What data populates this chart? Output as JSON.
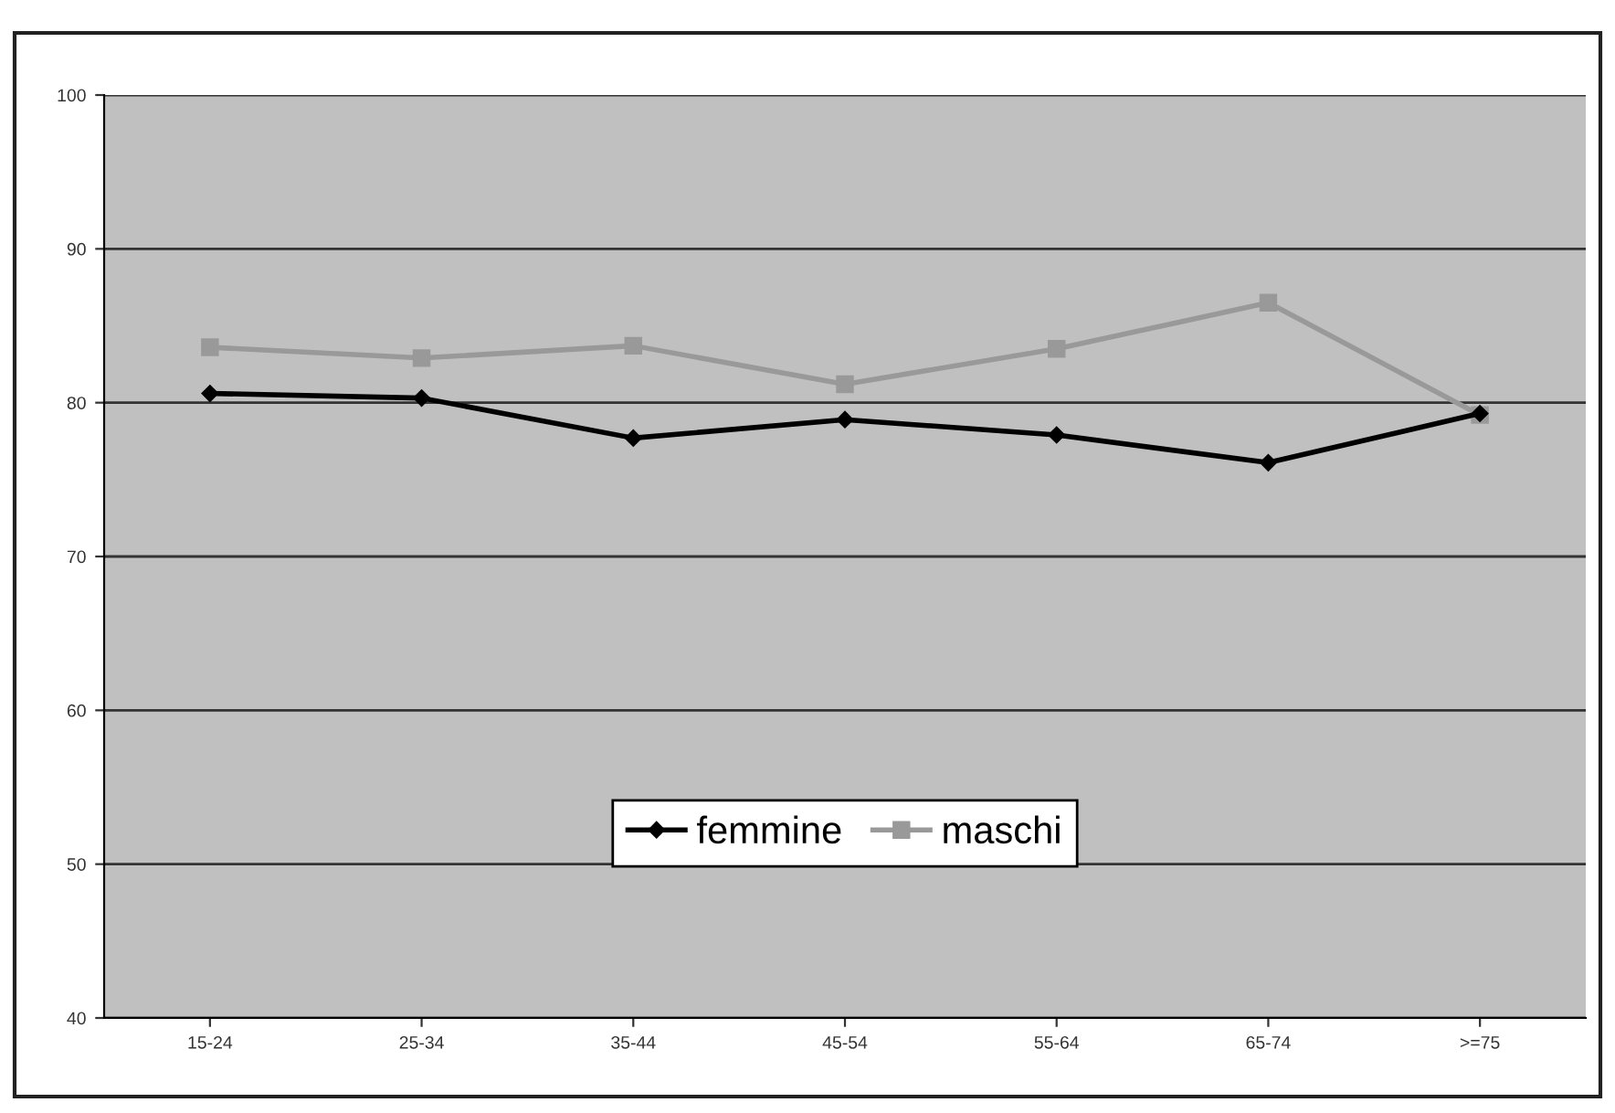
{
  "chart_data": {
    "type": "line",
    "categories": [
      "15-24",
      "25-34",
      "35-44",
      "45-54",
      "55-64",
      "65-74",
      ">=75"
    ],
    "series": [
      {
        "name": "femmine",
        "color": "#000000",
        "marker": "diamond",
        "values": [
          80.6,
          80.3,
          77.7,
          78.9,
          77.9,
          76.1,
          79.3
        ]
      },
      {
        "name": "maschi",
        "color": "#999999",
        "marker": "square",
        "values": [
          83.6,
          82.9,
          83.7,
          81.2,
          83.5,
          86.5,
          79.2
        ]
      }
    ],
    "ylim": [
      40,
      100
    ],
    "yticks": [
      40,
      50,
      60,
      70,
      80,
      90,
      100
    ],
    "grid": "y",
    "legend": "bottom"
  }
}
